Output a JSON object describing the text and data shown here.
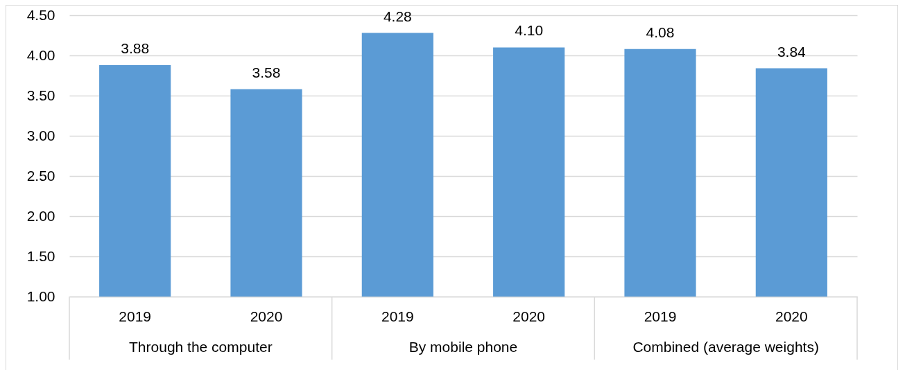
{
  "chart_data": {
    "type": "bar",
    "categories": [
      "2019",
      "2020",
      "2019",
      "2020",
      "2019",
      "2020"
    ],
    "values": [
      3.88,
      3.58,
      4.28,
      4.1,
      4.08,
      3.84
    ],
    "color": "#5b9bd5",
    "value_labels": [
      "3.88",
      "3.58",
      "4.28",
      "4.10",
      "4.08",
      "3.84"
    ],
    "ylim": [
      1,
      4.5
    ],
    "yticks": [
      {
        "value": 1,
        "label": "1.00"
      },
      {
        "value": 1.5,
        "label": "1.50"
      },
      {
        "value": 2,
        "label": "2.00"
      },
      {
        "value": 2.5,
        "label": "2.50"
      },
      {
        "value": 3,
        "label": "3.00"
      },
      {
        "value": 3.5,
        "label": "3.50"
      },
      {
        "value": 4,
        "label": "4.00"
      },
      {
        "value": 4.5,
        "label": "4.50"
      }
    ],
    "grid": "y",
    "annotations": [
      "Through the computer",
      "By mobile phone",
      "Combined (average weights)"
    ]
  }
}
